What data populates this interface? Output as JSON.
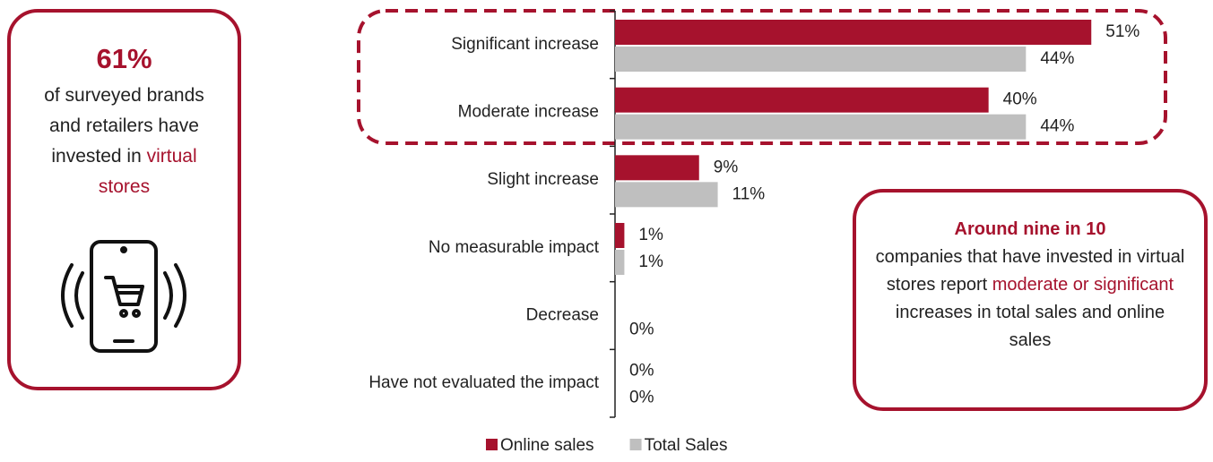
{
  "chart_data": {
    "type": "bar",
    "orientation": "horizontal",
    "categories": [
      "Significant increase",
      "Moderate increase",
      "Slight increase",
      "No measurable impact",
      "Decrease",
      "Have not evaluated the impact"
    ],
    "series": [
      {
        "name": "Online sales",
        "color": "#a6122d",
        "values": [
          51,
          40,
          9,
          1,
          0,
          0
        ],
        "value_labels": [
          "51%",
          "40%",
          "9%",
          "1%",
          "",
          "0%"
        ]
      },
      {
        "name": "Total Sales",
        "color": "#bfbfbf",
        "values": [
          44,
          44,
          11,
          1,
          0,
          0
        ],
        "value_labels": [
          "44%",
          "44%",
          "11%",
          "1%",
          "0%",
          "0%"
        ]
      }
    ],
    "xlim": [
      0,
      60
    ]
  },
  "callouts": {
    "left": {
      "stat": "61%",
      "text": "of surveyed brands and retailers have invested in",
      "highlight": "virtual stores"
    },
    "right": {
      "heading": "Around nine in 10",
      "text_before": "companies that have invested in virtual stores report",
      "highlight": "moderate or significant",
      "text_after": "increases in total sales and online sales"
    }
  }
}
